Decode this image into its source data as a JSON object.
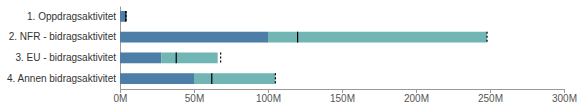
{
  "chart_data": {
    "type": "bar",
    "orientation": "horizontal",
    "stacked": true,
    "grid": false,
    "categories": [
      "1. Oppdragsaktivitet",
      "2. NFR - bidragsaktivitet",
      "3. EU - bidragsaktivitet",
      "4. Annen bidragsaktivitet"
    ],
    "series": [
      {
        "type": "bar",
        "color": "#4d7ea8",
        "values": [
          4,
          100,
          28,
          50
        ]
      },
      {
        "type": "bar",
        "color": "#72b5b5",
        "values": [
          0,
          148,
          38,
          55
        ]
      },
      {
        "type": "marker",
        "marker": "vline",
        "line_style": "solid",
        "color": "black",
        "values": [
          4,
          120,
          38,
          62
        ]
      },
      {
        "type": "marker",
        "marker": "vline",
        "line_style": "dotted",
        "color": "black",
        "values": [
          4,
          248,
          68,
          105
        ]
      }
    ],
    "xlim": [
      0,
      300
    ],
    "xticks": [
      {
        "value": 0,
        "label": "0M"
      },
      {
        "value": 50,
        "label": "50M"
      },
      {
        "value": 100,
        "label": "100M"
      },
      {
        "value": 150,
        "label": "150M"
      },
      {
        "value": 200,
        "label": "200M"
      },
      {
        "value": 250,
        "label": "250M"
      },
      {
        "value": 300,
        "label": "300M"
      }
    ]
  }
}
